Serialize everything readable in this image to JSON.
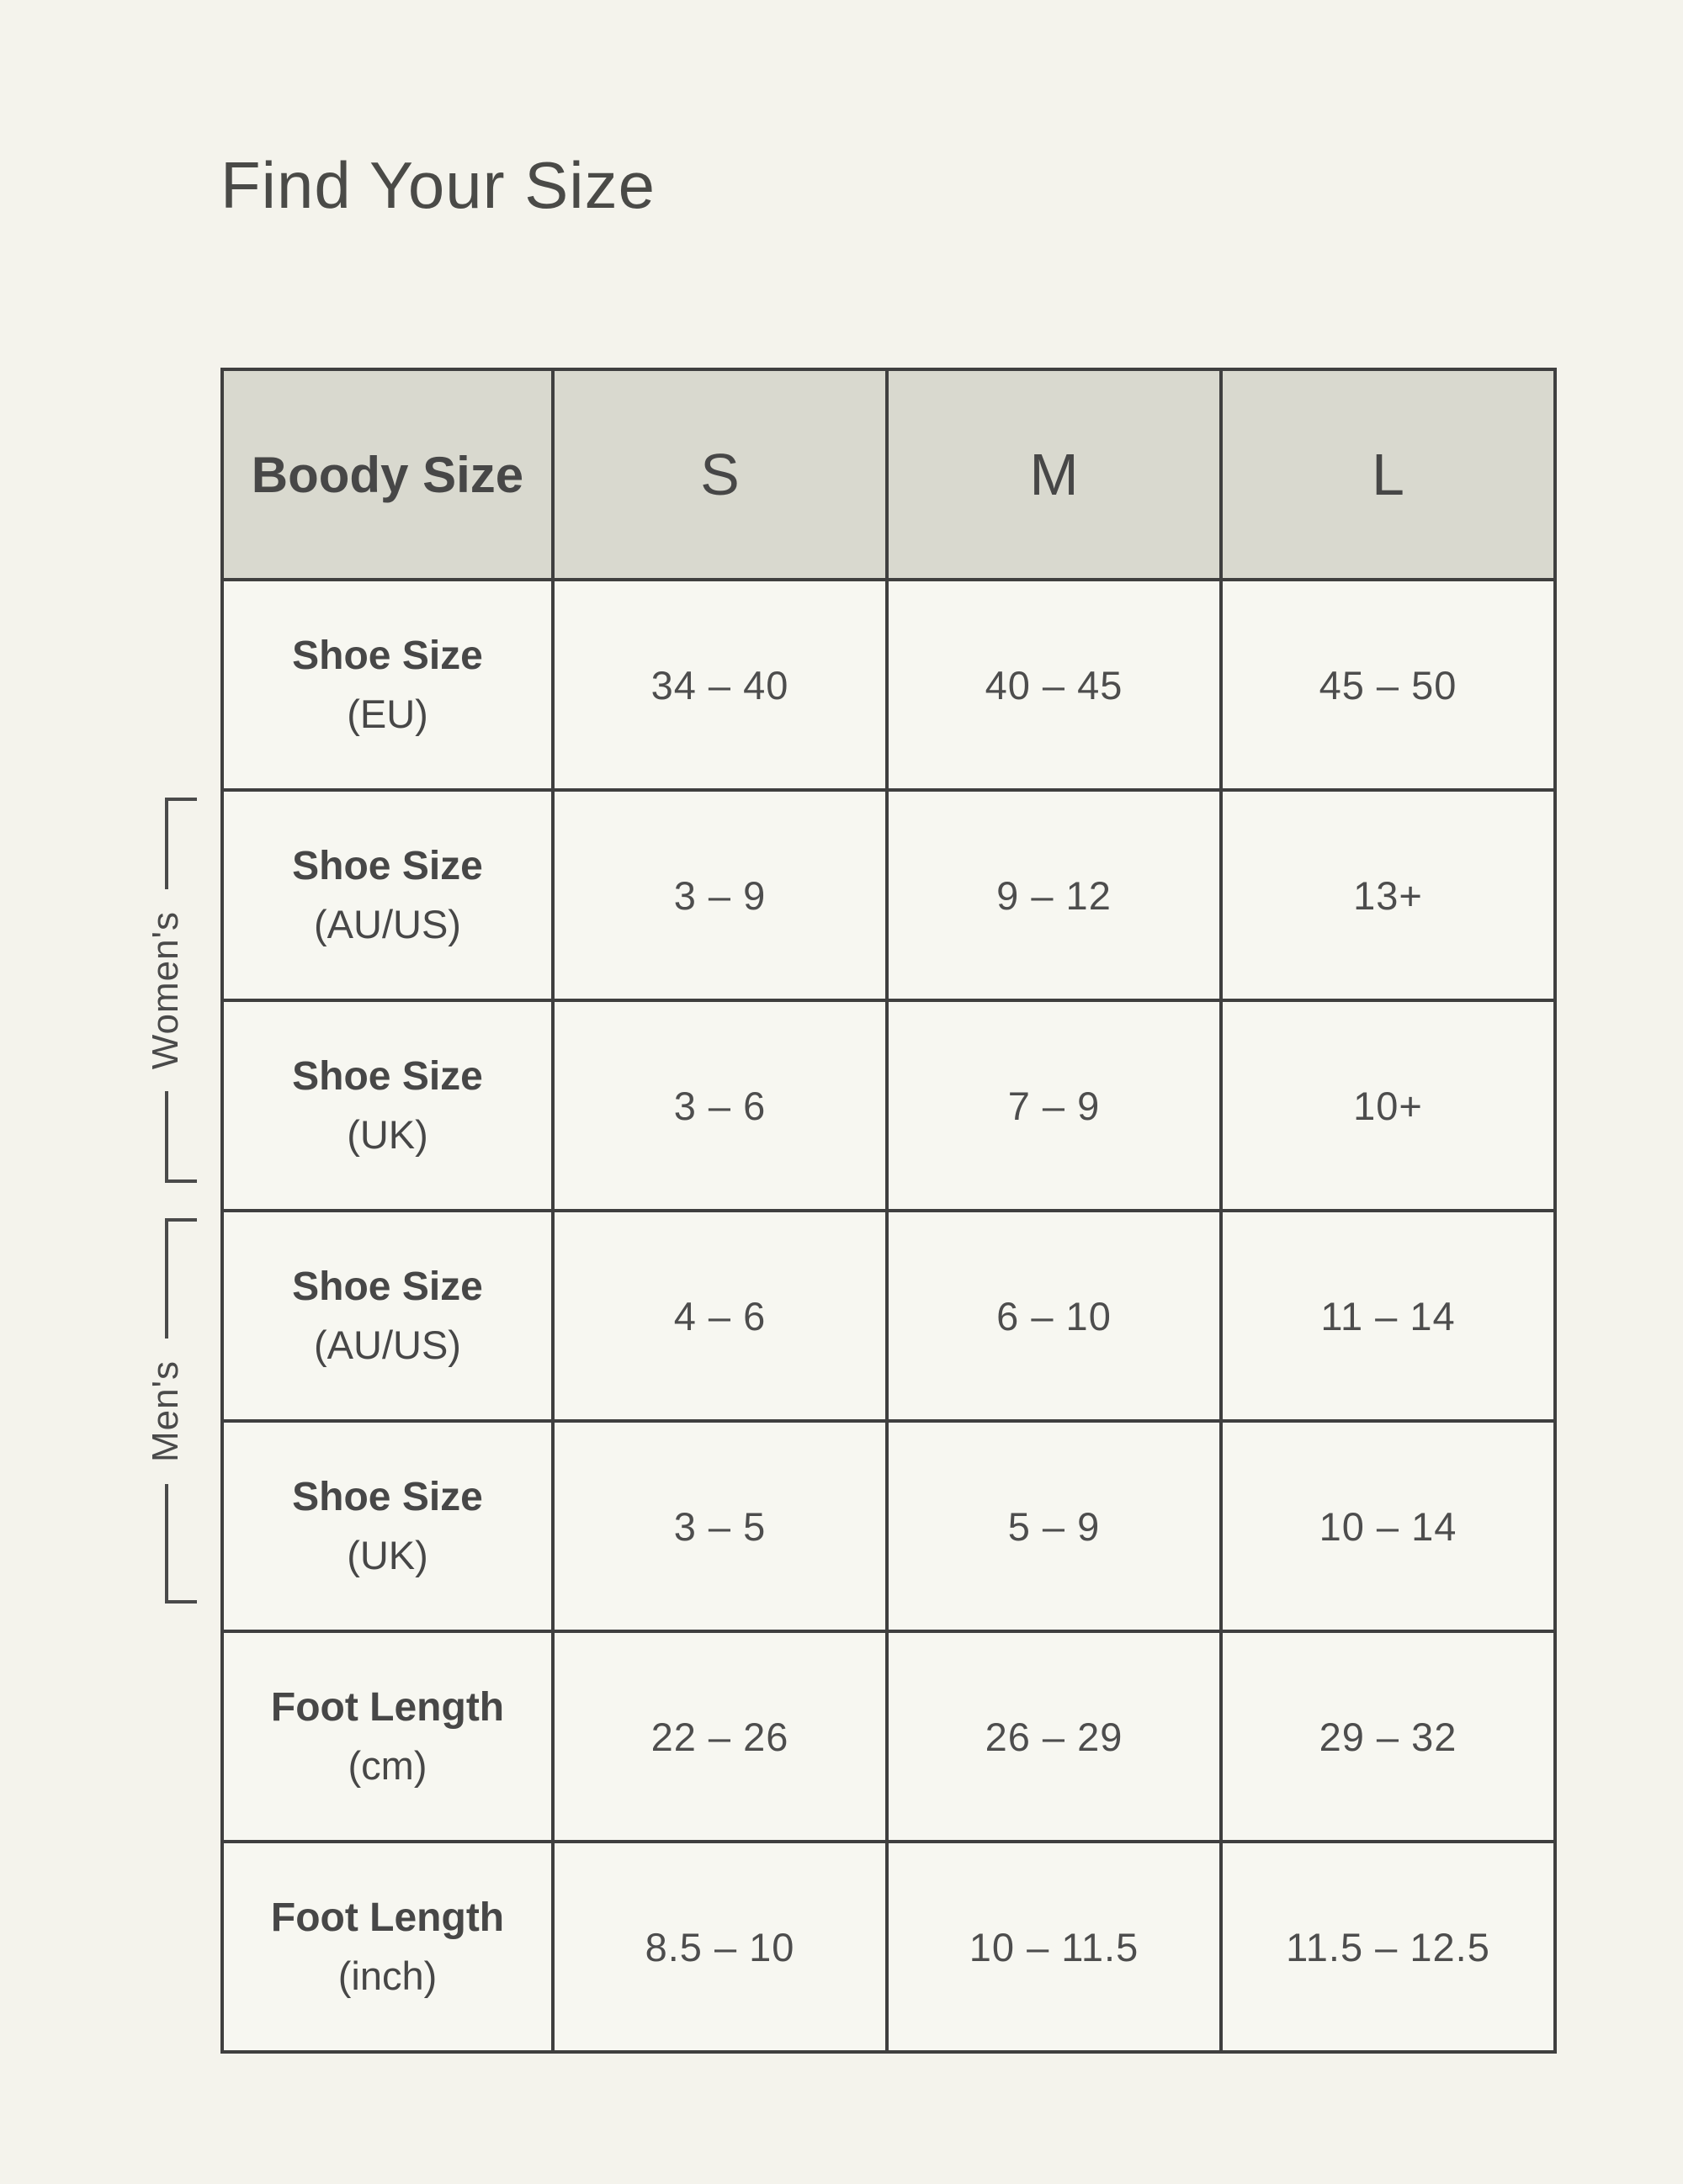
{
  "page": {
    "title": "Find Your Size",
    "background_color": "#f4f3ec"
  },
  "table": {
    "header": {
      "label": "Boody Size",
      "columns": [
        "S",
        "M",
        "L"
      ],
      "background_color": "#d9d9cf"
    },
    "rows": [
      {
        "label": "Shoe Size",
        "sublabel": "(EU)",
        "group": "",
        "values": [
          "34 – 40",
          "40 – 45",
          "45 – 50"
        ]
      },
      {
        "label": "Shoe Size",
        "sublabel": "(AU/US)",
        "group": "Women's",
        "values": [
          "3 – 9",
          "9 – 12",
          "13+"
        ]
      },
      {
        "label": "Shoe Size",
        "sublabel": "(UK)",
        "group": "Women's",
        "values": [
          "3 – 6",
          "7 – 9",
          "10+"
        ]
      },
      {
        "label": "Shoe Size",
        "sublabel": "(AU/US)",
        "group": "Men's",
        "values": [
          "4 – 6",
          "6 – 10",
          "11 – 14"
        ]
      },
      {
        "label": "Shoe Size",
        "sublabel": "(UK)",
        "group": "Men's",
        "values": [
          "3 – 5",
          "5 – 9",
          "10 – 14"
        ]
      },
      {
        "label": "Foot Length",
        "sublabel": "(cm)",
        "group": "",
        "values": [
          "22 – 26",
          "26 – 29",
          "29 – 32"
        ]
      },
      {
        "label": "Foot Length",
        "sublabel": "(inch)",
        "group": "",
        "values": [
          "8.5 – 10",
          "10 – 11.5",
          "11.5 – 12.5"
        ]
      }
    ],
    "groups": [
      {
        "label": "Women's"
      },
      {
        "label": "Men's"
      }
    ],
    "colors": {
      "border": "#3f3f3f",
      "header_background": "#d9d9cf",
      "cell_background": "#f7f7f1",
      "text": "#474747",
      "bracket": "#4a4a4a"
    }
  }
}
